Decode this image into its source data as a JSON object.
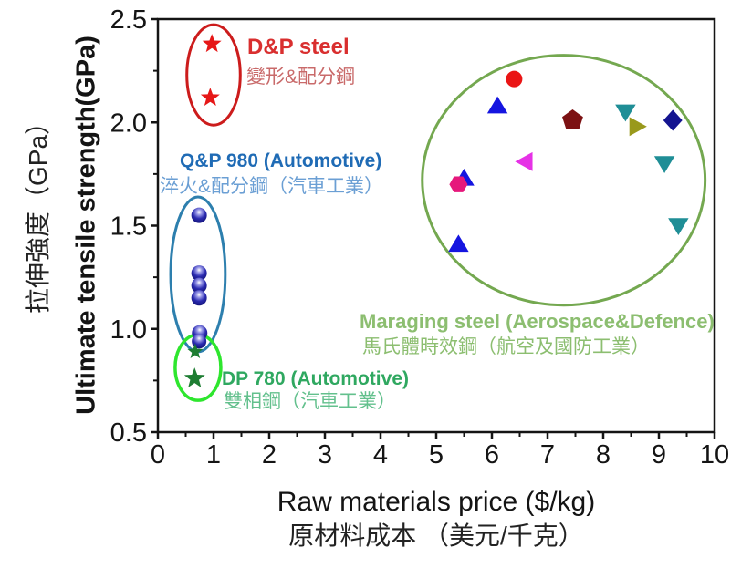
{
  "colors": {
    "frame": "#141414",
    "dp_steel_red": "#e61717",
    "qp_sphere_blue": "#1d1d9e",
    "dp780_green": "#1e7d32",
    "group_red_ellipse": "#cc1c1c",
    "group_blue_ellipse": "#2d7fae",
    "group_green_small_ellipse": "#2ee62e",
    "group_green_big_ellipse": "#74a850"
  },
  "chart_data": {
    "type": "scatter",
    "title": "",
    "x_axis": {
      "label_en": "Raw materials price ($/kg)",
      "label_zh": "原材料成本 （美元/千克）",
      "min": 0,
      "max": 10,
      "major_ticks": [
        0,
        1,
        2,
        3,
        4,
        5,
        6,
        7,
        8,
        9,
        10
      ],
      "tick_labels": [
        "0",
        "1",
        "2",
        "3",
        "4",
        "5",
        "6",
        "7",
        "8",
        "9",
        "10"
      ],
      "minor_per_interval": 1,
      "grid": false
    },
    "y_axis": {
      "label_en": "Ultimate tensile strength(GPa)",
      "label_zh": "拉伸強度（GPa）",
      "min": 0.5,
      "max": 2.5,
      "major_ticks": [
        0.5,
        1.0,
        1.5,
        2.0,
        2.5
      ],
      "tick_labels": [
        "0.5",
        "1.0",
        "1.5",
        "2.0",
        "2.5"
      ],
      "minor_per_interval": 1,
      "grid": false
    },
    "series": [
      {
        "name": "D&P steel",
        "name_zh": "變形&配分鋼",
        "marker": "star",
        "color": "#e61717",
        "points": [
          {
            "x": 0.97,
            "y": 2.38,
            "size": 11
          },
          {
            "x": 0.94,
            "y": 2.12,
            "size": 11
          }
        ]
      },
      {
        "name": "Q&P 980 (Automotive)",
        "name_zh": "淬火&配分鋼（汽車工業）",
        "marker": "sphere",
        "color": "#1d1d9e",
        "points": [
          {
            "x": 0.74,
            "y": 1.55,
            "size": 8.5
          },
          {
            "x": 0.74,
            "y": 1.27,
            "size": 8.5
          },
          {
            "x": 0.74,
            "y": 1.21,
            "size": 8.5
          },
          {
            "x": 0.74,
            "y": 1.15,
            "size": 8.5
          },
          {
            "x": 0.75,
            "y": 0.98,
            "size": 8.5
          },
          {
            "x": 0.74,
            "y": 0.94,
            "size": 8
          }
        ]
      },
      {
        "name": "DP 780 (Automotive)",
        "name_zh": "雙相鋼（汽車工業）",
        "marker": "star",
        "color": "#1e7d32",
        "points": [
          {
            "x": 0.67,
            "y": 0.89,
            "size": 9
          },
          {
            "x": 0.66,
            "y": 0.76,
            "size": 12
          }
        ]
      },
      {
        "name": "Maraging steel (Aerospace&Defence)",
        "name_zh": "馬氏體時效鋼（航空及國防工業）",
        "marker": "mixed",
        "color": "#74a850",
        "points": [
          {
            "x": 6.4,
            "y": 2.21,
            "shape": "circle",
            "color": "#ea1515",
            "size": 9
          },
          {
            "x": 6.1,
            "y": 2.08,
            "shape": "triangle-up",
            "color": "#1515e0",
            "size": 11
          },
          {
            "x": 7.45,
            "y": 2.01,
            "shape": "pentagon",
            "color": "#7c1113",
            "size": 12
          },
          {
            "x": 8.4,
            "y": 2.05,
            "shape": "triangle-down",
            "color": "#1f8e96",
            "size": 11
          },
          {
            "x": 8.6,
            "y": 1.98,
            "shape": "triangle-right",
            "color": "#99991c",
            "size": 11
          },
          {
            "x": 9.25,
            "y": 2.01,
            "shape": "diamond",
            "color": "#141490",
            "size": 11
          },
          {
            "x": 6.6,
            "y": 1.81,
            "shape": "triangle-left",
            "color": "#e632e6",
            "size": 11
          },
          {
            "x": 9.1,
            "y": 1.8,
            "shape": "triangle-down",
            "color": "#1f8e96",
            "size": 11
          },
          {
            "x": 5.5,
            "y": 1.73,
            "shape": "triangle-up",
            "color": "#1515e0",
            "size": 11
          },
          {
            "x": 5.4,
            "y": 1.7,
            "shape": "hexagon",
            "color": "#e6187c",
            "size": 10
          },
          {
            "x": 9.35,
            "y": 1.5,
            "shape": "triangle-down",
            "color": "#1f8e96",
            "size": 11
          },
          {
            "x": 5.4,
            "y": 1.41,
            "shape": "triangle-up",
            "color": "#1515e0",
            "size": 11
          }
        ]
      }
    ],
    "group_ellipses": [
      {
        "group": "maraging-steel",
        "cx": 7.29,
        "cy": 1.72,
        "rx": 2.54,
        "ry": 0.605,
        "color": "#74a850",
        "stroke_width": 3
      },
      {
        "group": "dp-steel",
        "cx": 1.0,
        "cy": 2.23,
        "rx": 0.48,
        "ry": 0.243,
        "color": "#cc1c1c",
        "stroke_width": 3
      },
      {
        "group": "qp-980",
        "cx": 0.72,
        "cy": 1.264,
        "rx": 0.49,
        "ry": 0.375,
        "color": "#2d7fae",
        "stroke_width": 3
      },
      {
        "group": "dp-780",
        "cx": 0.72,
        "cy": 0.813,
        "rx": 0.41,
        "ry": 0.159,
        "color": "#2ee62e",
        "stroke_width": 3.5
      }
    ],
    "legend_position": "none"
  },
  "annotations": {
    "dp_steel_en": "D&P steel",
    "dp_steel_zh": "變形&配分鋼",
    "qp980_en": "Q&P 980 (Automotive)",
    "qp980_zh": "淬火&配分鋼（汽車工業）",
    "dp780_en": "DP 780 (Automotive)",
    "dp780_zh": "雙相鋼（汽車工業）",
    "maraging_en": "Maraging steel (Aerospace&Defence)",
    "maraging_zh": "馬氏體時效鋼（航空及國防工業）"
  },
  "axis_titles": {
    "x_en": "Raw materials price ($/kg)",
    "x_zh": "原材料成本 （美元/千克）",
    "y_en": "Ultimate tensile strength(GPa)",
    "y_zh": "拉伸強度（GPa）"
  }
}
